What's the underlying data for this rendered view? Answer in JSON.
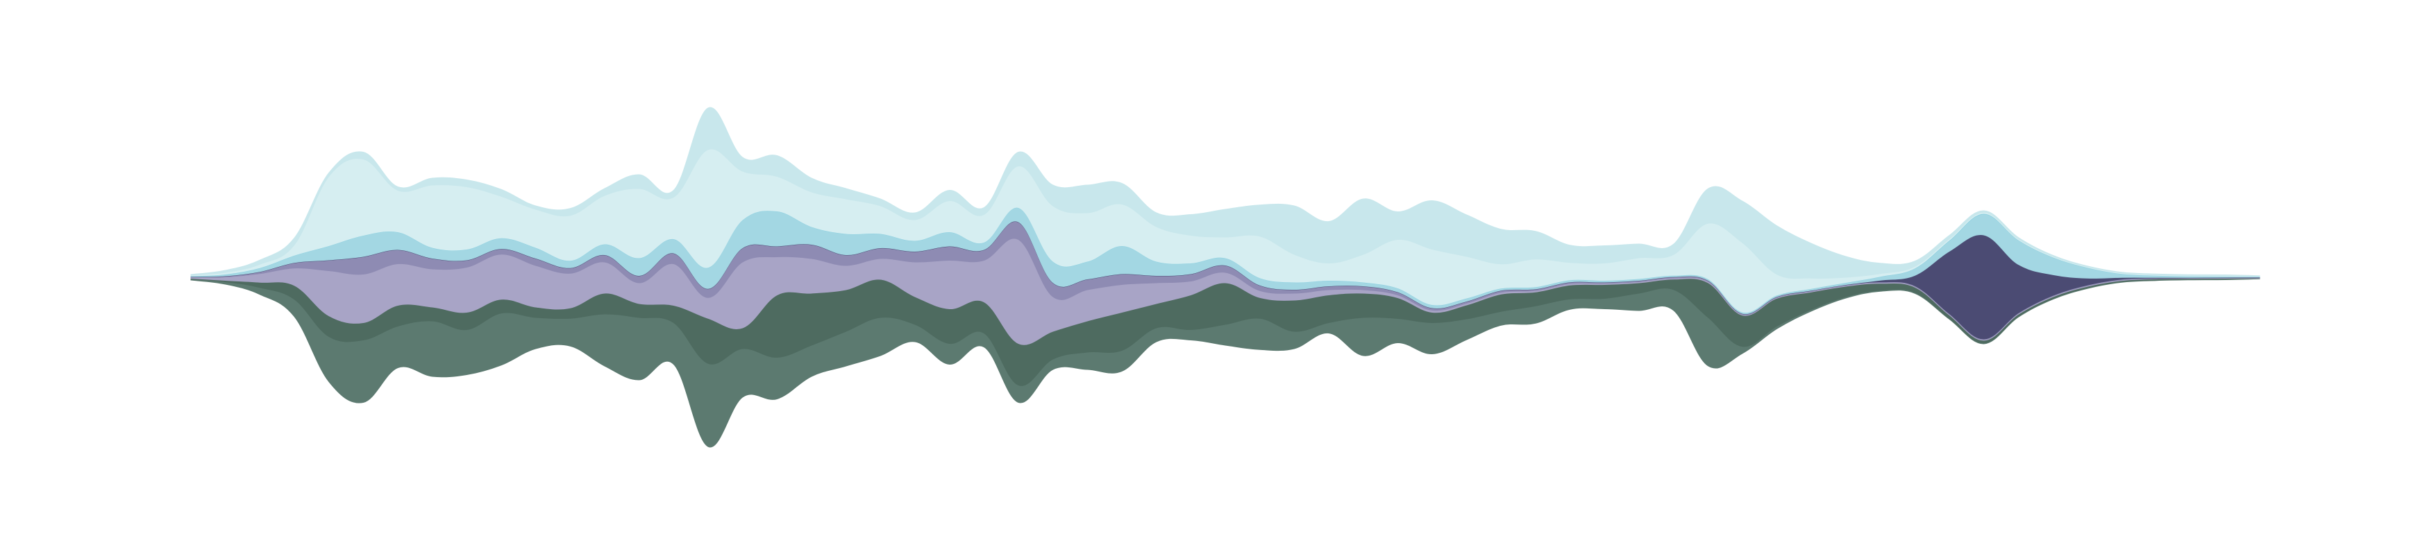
{
  "chart_data": {
    "type": "area",
    "subtype": "streamgraph",
    "offset": "silhouette",
    "title": "",
    "xlabel": "",
    "ylabel": "",
    "axes_visible": false,
    "grid": false,
    "legend": "none",
    "x": [
      0,
      1,
      2,
      3,
      4,
      5,
      6,
      7,
      8,
      9,
      10,
      11,
      12,
      13,
      14,
      15,
      16,
      17,
      18,
      19,
      20,
      21,
      22,
      23,
      24,
      25,
      26,
      27,
      28,
      29,
      30,
      31,
      32,
      33,
      34,
      35,
      36,
      37,
      38,
      39,
      40,
      41,
      42,
      43,
      44,
      45,
      46,
      47,
      48,
      49,
      50,
      51,
      52,
      53,
      54,
      55,
      56,
      57,
      58,
      59,
      60
    ],
    "ylim": [
      -68,
      68
    ],
    "series": [
      {
        "color": "#5c7a70",
        "values": [
          0.3,
          0.7,
          2.0,
          5.0,
          13.0,
          18.0,
          12.0,
          16.0,
          13.0,
          15.0,
          9.0,
          8.0,
          15.0,
          18.0,
          12.0,
          24.0,
          14.0,
          12.0,
          9.0,
          10.0,
          11.0,
          5.0,
          6.0,
          4.0,
          5.0,
          3.0,
          5.0,
          6.0,
          4.0,
          3.0,
          6.0,
          9.0,
          5.0,
          3.0,
          11.0,
          7.0,
          9.0,
          6.0,
          4.0,
          5.0,
          3.0,
          3.0,
          5.0,
          6.0,
          14.0,
          2.0,
          0.8,
          0.5,
          0.4,
          0.3,
          0.3,
          0.2,
          0.2,
          0.2,
          0.2,
          0.2,
          0.2,
          0.2,
          0.2,
          0.2,
          0.1
        ]
      },
      {
        "color": "#4e6b60",
        "values": [
          0.2,
          0.4,
          1.5,
          4.0,
          6.0,
          5.0,
          6.0,
          4.0,
          5.0,
          4.0,
          3.0,
          3.0,
          6.0,
          4.0,
          5.0,
          13.0,
          6.0,
          18.0,
          15.0,
          12.0,
          11.0,
          8.0,
          10.0,
          9.0,
          12.0,
          8.0,
          9.0,
          11.0,
          7.0,
          10.0,
          12.0,
          6.0,
          9.0,
          8.0,
          7.0,
          6.0,
          3.0,
          4.0,
          5.0,
          4.0,
          4.0,
          4.0,
          3.0,
          3.0,
          10.0,
          9.0,
          8.0,
          5.0,
          3.0,
          2.0,
          1.5,
          1.0,
          0.8,
          0.6,
          0.5,
          0.4,
          0.3,
          0.3,
          0.2,
          0.2,
          0.1
        ]
      },
      {
        "color": "#a8a4c6",
        "values": [
          0.3,
          1.0,
          2.5,
          5.0,
          13.0,
          14.0,
          12.0,
          11.0,
          13.0,
          13.0,
          12.0,
          10.0,
          9.0,
          6.0,
          12.0,
          6.0,
          19.0,
          11.0,
          10.0,
          7.0,
          6.0,
          10.0,
          14.0,
          12.0,
          30.0,
          10.0,
          9.0,
          8.0,
          6.0,
          4.0,
          3.0,
          2.0,
          2.0,
          1.5,
          1.0,
          0.8,
          0.6,
          0.5,
          0.5,
          0.4,
          0.4,
          0.3,
          0.3,
          0.3,
          0.3,
          0.2,
          0.2,
          0.2,
          0.2,
          0.2,
          0.2,
          0.2,
          0.2,
          0.2,
          0.2,
          0.2,
          0.2,
          0.1,
          0.1,
          0.1,
          0.1
        ]
      },
      {
        "color": "#8e8bb3",
        "values": [
          0.1,
          0.2,
          0.5,
          1.5,
          3.0,
          5.0,
          4.0,
          3.0,
          2.0,
          1.5,
          2.0,
          1.5,
          2.0,
          2.0,
          3.0,
          2.5,
          4.0,
          3.0,
          4.0,
          3.0,
          3.0,
          3.0,
          4.0,
          3.0,
          5.0,
          4.0,
          3.0,
          3.0,
          2.0,
          2.0,
          2.0,
          1.5,
          1.0,
          1.0,
          1.0,
          0.8,
          0.6,
          0.5,
          0.5,
          0.4,
          0.4,
          0.3,
          0.3,
          0.3,
          0.3,
          0.2,
          0.2,
          0.2,
          0.2,
          0.2,
          0.2,
          0.2,
          0.2,
          0.2,
          0.2,
          0.2,
          0.2,
          0.1,
          0.1,
          0.1,
          0.1
        ]
      },
      {
        "color": "#4b4b73",
        "values": [
          0.1,
          0.1,
          0.1,
          0.1,
          0.1,
          0.1,
          0.1,
          0.1,
          0.1,
          0.1,
          0.1,
          0.1,
          0.1,
          0.1,
          0.1,
          0.1,
          0.1,
          0.1,
          0.1,
          0.1,
          0.1,
          0.1,
          0.1,
          0.1,
          0.1,
          0.1,
          0.1,
          0.1,
          0.1,
          0.1,
          0.1,
          0.1,
          0.1,
          0.1,
          0.1,
          0.1,
          0.1,
          0.1,
          0.1,
          0.1,
          0.1,
          0.1,
          0.1,
          0.1,
          0.1,
          0.1,
          0.1,
          0.1,
          0.1,
          0.5,
          3.0,
          18.0,
          30.0,
          14.0,
          6.0,
          2.0,
          0.5,
          0.2,
          0.1,
          0.1,
          0.1
        ]
      },
      {
        "color": "#a3d7e3",
        "values": [
          0.1,
          0.4,
          1.0,
          2.0,
          4.0,
          6.0,
          5.0,
          3.0,
          3.0,
          3.0,
          3.0,
          2.0,
          3.0,
          5.0,
          4.0,
          6.0,
          8.0,
          10.0,
          5.0,
          6.0,
          4.0,
          3.0,
          4.0,
          2.0,
          4.0,
          6.0,
          5.0,
          8.0,
          4.0,
          3.0,
          2.0,
          2.0,
          2.0,
          1.5,
          1.0,
          1.0,
          0.8,
          0.8,
          0.5,
          0.5,
          0.5,
          0.4,
          0.4,
          0.3,
          0.3,
          0.3,
          0.3,
          0.4,
          0.5,
          1.0,
          2.0,
          3.0,
          6.0,
          7.0,
          5.0,
          3.0,
          1.0,
          0.5,
          0.3,
          0.2,
          0.1
        ]
      },
      {
        "color": "#8fd1e1",
        "values": [
          0.1,
          0.1,
          0.1,
          0.1,
          0.1,
          0.1,
          0.1,
          0.1,
          0.1,
          0.1,
          0.1,
          0.1,
          0.1,
          0.1,
          0.1,
          0.1,
          0.1,
          0.1,
          0.1,
          0.1,
          0.1,
          0.1,
          0.1,
          0.1,
          0.1,
          0.1,
          0.1,
          0.1,
          0.1,
          0.1,
          0.1,
          0.1,
          0.1,
          0.1,
          0.1,
          0.1,
          0.1,
          0.1,
          0.1,
          0.1,
          0.1,
          0.1,
          0.1,
          0.1,
          0.1,
          0.1,
          0.1,
          0.1,
          0.1,
          0.1,
          0.1,
          0.2,
          0.2,
          0.1,
          0.1,
          0.1,
          0.1,
          0.1,
          0.1,
          0.1,
          0.1
        ]
      },
      {
        "color": "#d6eef1",
        "values": [
          0.2,
          0.5,
          1.0,
          3.0,
          20.0,
          22.0,
          12.0,
          18.0,
          18.0,
          12.0,
          11.0,
          13.0,
          14.0,
          20.0,
          12.0,
          34.0,
          14.0,
          10.0,
          10.0,
          10.0,
          8.0,
          6.0,
          9.0,
          8.0,
          12.0,
          16.0,
          14.0,
          12.0,
          10.0,
          8.0,
          6.0,
          12.0,
          8.0,
          5.0,
          8.0,
          14.0,
          16.0,
          12.0,
          7.0,
          8.0,
          5.0,
          5.0,
          6.0,
          6.0,
          16.0,
          20.0,
          6.0,
          3.0,
          1.5,
          0.8,
          0.5,
          0.4,
          0.3,
          0.3,
          0.2,
          0.2,
          0.2,
          0.2,
          0.2,
          0.2,
          0.1
        ]
      },
      {
        "color": "#c8e7ec",
        "values": [
          0.2,
          0.6,
          1.2,
          2.0,
          1.0,
          2.0,
          1.0,
          2.0,
          2.0,
          2.0,
          1.0,
          2.0,
          2.0,
          4.0,
          2.0,
          12.0,
          4.0,
          6.0,
          4.0,
          3.0,
          2.0,
          2.0,
          3.0,
          2.0,
          4.0,
          6.0,
          8.0,
          6.0,
          4.0,
          6.0,
          8.0,
          9.0,
          14.0,
          12.0,
          16.0,
          8.0,
          14.0,
          12.0,
          10.0,
          8.0,
          5.0,
          5.0,
          4.0,
          3.0,
          10.0,
          12.0,
          14.0,
          10.0,
          6.0,
          3.0,
          1.5,
          1.0,
          0.5,
          0.4,
          0.3,
          0.2,
          0.2,
          0.2,
          0.2,
          0.2,
          0.1
        ]
      }
    ]
  }
}
